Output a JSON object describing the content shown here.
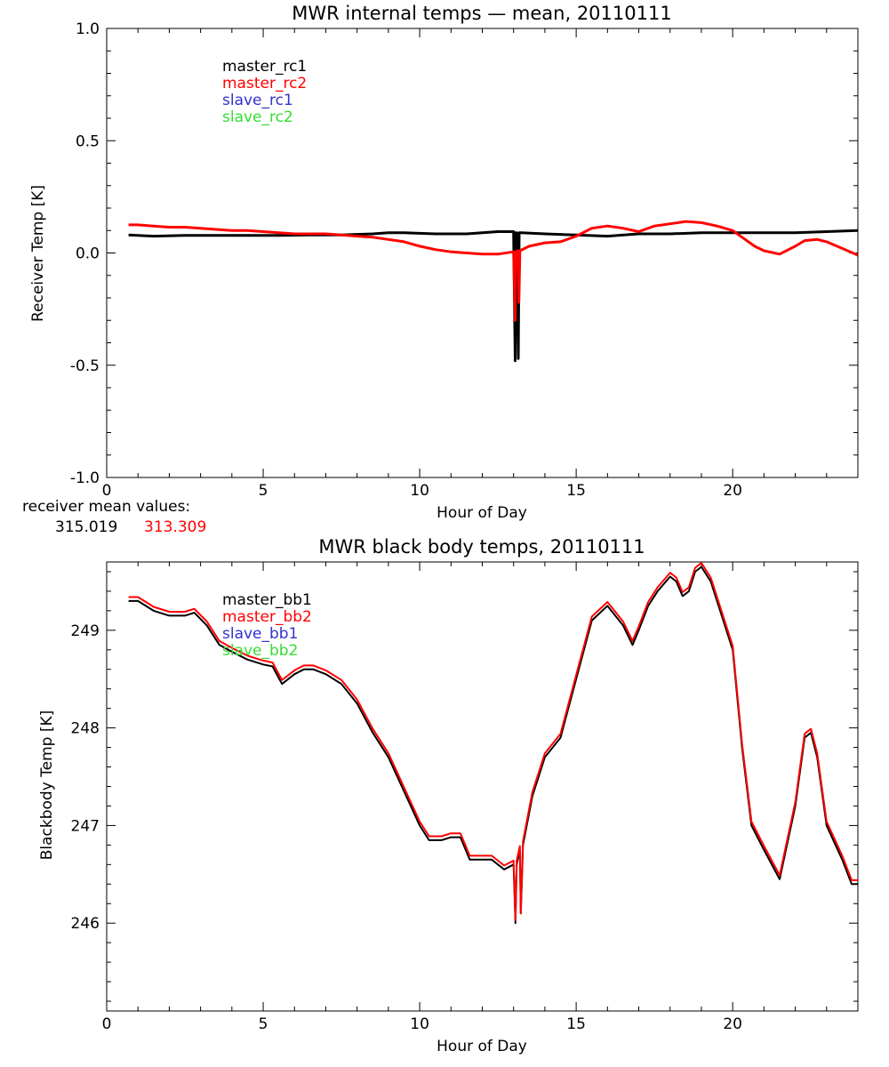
{
  "colors": {
    "master_rc1": "#000000",
    "master_rc2": "#ff0000",
    "slave_rc1": "#3333cc",
    "slave_rc2": "#33dd33"
  },
  "receiver_note": {
    "label": "receiver mean values:",
    "value_1": "315.019",
    "value_2": "313.309"
  },
  "chart_data": [
    {
      "type": "line",
      "title": "MWR internal temps — mean, 20110111",
      "xlabel": "Hour of Day",
      "ylabel": "Receiver Temp [K]",
      "xlim": [
        0,
        24
      ],
      "ylim": [
        -1.0,
        1.0
      ],
      "x_ticks": [
        "0",
        "5",
        "10",
        "15",
        "20"
      ],
      "y_ticks": [
        "-1.0",
        "-0.5",
        "0.0",
        "0.5",
        "1.0"
      ],
      "legend_position": "top-left",
      "legend": [
        "master_rc1",
        "master_rc2",
        "slave_rc1",
        "slave_rc2"
      ],
      "series": [
        {
          "name": "master_rc1",
          "x": [
            0.7,
            1.5,
            2.5,
            3.5,
            4.5,
            5.5,
            6.5,
            7.5,
            8.5,
            9.0,
            9.5,
            10.5,
            11.5,
            12.0,
            12.5,
            13.0,
            13.05,
            13.07,
            13.1,
            13.15,
            13.18,
            13.25,
            14.0,
            15.0,
            16.0,
            17.0,
            18.0,
            19.0,
            20.0,
            21.0,
            22.0,
            23.0,
            24.0
          ],
          "y": [
            0.08,
            0.075,
            0.078,
            0.078,
            0.078,
            0.078,
            0.08,
            0.08,
            0.085,
            0.09,
            0.09,
            0.085,
            0.085,
            0.09,
            0.095,
            0.095,
            -0.48,
            0.09,
            0.09,
            -0.47,
            0.09,
            0.09,
            0.085,
            0.08,
            0.075,
            0.085,
            0.085,
            0.09,
            0.09,
            0.09,
            0.09,
            0.095,
            0.1
          ]
        },
        {
          "name": "master_rc2",
          "x": [
            0.7,
            1.0,
            1.5,
            2.0,
            2.5,
            3.0,
            3.5,
            4.0,
            4.5,
            5.0,
            5.5,
            6.0,
            6.5,
            7.0,
            7.5,
            8.0,
            8.5,
            9.0,
            9.5,
            10.0,
            10.5,
            11.0,
            11.5,
            12.0,
            12.5,
            13.0,
            13.05,
            13.07,
            13.15,
            13.17,
            13.2,
            13.5,
            14.0,
            14.5,
            15.0,
            15.5,
            16.0,
            16.5,
            17.0,
            17.5,
            18.0,
            18.5,
            19.0,
            19.5,
            20.0,
            20.3,
            20.7,
            21.0,
            21.5,
            22.0,
            22.3,
            22.7,
            23.0,
            23.5,
            24.0
          ],
          "y": [
            0.125,
            0.125,
            0.12,
            0.115,
            0.115,
            0.11,
            0.105,
            0.1,
            0.1,
            0.095,
            0.09,
            0.085,
            0.085,
            0.085,
            0.08,
            0.075,
            0.07,
            0.06,
            0.05,
            0.03,
            0.015,
            0.005,
            0.0,
            -0.005,
            -0.005,
            0.005,
            -0.3,
            0.005,
            0.01,
            -0.22,
            0.01,
            0.03,
            0.045,
            0.05,
            0.075,
            0.11,
            0.12,
            0.11,
            0.095,
            0.12,
            0.13,
            0.14,
            0.135,
            0.12,
            0.1,
            0.07,
            0.03,
            0.01,
            -0.005,
            0.03,
            0.055,
            0.06,
            0.05,
            0.02,
            -0.01
          ]
        }
      ]
    },
    {
      "type": "line",
      "title": "MWR black body temps, 20110111",
      "xlabel": "Hour of Day",
      "ylabel": "Blackbody Temp [K]",
      "xlim": [
        0,
        24
      ],
      "ylim": [
        245.1,
        249.7
      ],
      "x_ticks": [
        "0",
        "5",
        "10",
        "15",
        "20"
      ],
      "y_ticks": [
        "246",
        "247",
        "248",
        "249"
      ],
      "legend_position": "top-left",
      "legend": [
        "master_bb1",
        "master_bb2",
        "slave_bb1",
        "slave_bb2"
      ],
      "series": [
        {
          "name": "master_bb1",
          "x": [
            0.7,
            1.0,
            1.5,
            2.0,
            2.5,
            2.8,
            3.2,
            3.6,
            4.0,
            4.5,
            5.0,
            5.3,
            5.6,
            6.0,
            6.3,
            6.6,
            7.0,
            7.5,
            8.0,
            8.5,
            9.0,
            9.5,
            10.0,
            10.3,
            10.7,
            11.0,
            11.3,
            11.6,
            12.0,
            12.3,
            12.7,
            13.0,
            13.06,
            13.1,
            13.2,
            13.23,
            13.3,
            13.6,
            14.0,
            14.5,
            15.0,
            15.5,
            16.0,
            16.5,
            16.8,
            17.0,
            17.3,
            17.6,
            18.0,
            18.2,
            18.4,
            18.6,
            18.8,
            19.0,
            19.3,
            19.6,
            20.0,
            20.3,
            20.6,
            21.0,
            21.5,
            22.0,
            22.3,
            22.5,
            22.7,
            23.0,
            23.5,
            23.8,
            24.0
          ],
          "y": [
            249.3,
            249.3,
            249.2,
            249.15,
            249.15,
            249.18,
            249.05,
            248.85,
            248.78,
            248.7,
            248.65,
            248.63,
            248.45,
            248.55,
            248.6,
            248.6,
            248.55,
            248.45,
            248.25,
            247.95,
            247.7,
            247.35,
            247.0,
            246.85,
            246.85,
            246.88,
            246.88,
            246.65,
            246.65,
            246.65,
            246.55,
            246.6,
            246.0,
            246.6,
            246.75,
            246.1,
            246.8,
            247.3,
            247.7,
            247.9,
            248.5,
            249.1,
            249.25,
            249.05,
            248.85,
            249.0,
            249.25,
            249.4,
            249.55,
            249.5,
            249.35,
            249.4,
            249.6,
            249.65,
            249.5,
            249.2,
            248.8,
            247.8,
            247.0,
            246.75,
            246.45,
            247.2,
            247.9,
            247.95,
            247.7,
            247.0,
            246.65,
            246.4,
            246.4
          ]
        },
        {
          "name": "master_bb2",
          "x": [
            0.7,
            1.0,
            1.5,
            2.0,
            2.5,
            2.8,
            3.2,
            3.6,
            4.0,
            4.5,
            5.0,
            5.3,
            5.6,
            6.0,
            6.3,
            6.6,
            7.0,
            7.5,
            8.0,
            8.5,
            9.0,
            9.5,
            10.0,
            10.3,
            10.7,
            11.0,
            11.3,
            11.6,
            12.0,
            12.3,
            12.7,
            13.0,
            13.06,
            13.1,
            13.2,
            13.23,
            13.3,
            13.6,
            14.0,
            14.5,
            15.0,
            15.5,
            16.0,
            16.5,
            16.8,
            17.0,
            17.3,
            17.6,
            18.0,
            18.2,
            18.4,
            18.6,
            18.8,
            19.0,
            19.3,
            19.6,
            20.0,
            20.3,
            20.6,
            21.0,
            21.5,
            22.0,
            22.3,
            22.5,
            22.7,
            23.0,
            23.5,
            23.8,
            24.0
          ],
          "y": [
            249.34,
            249.34,
            249.24,
            249.19,
            249.19,
            249.22,
            249.09,
            248.89,
            248.82,
            248.74,
            248.69,
            248.67,
            248.49,
            248.59,
            248.64,
            248.64,
            248.59,
            248.49,
            248.29,
            247.99,
            247.74,
            247.39,
            247.04,
            246.89,
            246.89,
            246.92,
            246.92,
            246.69,
            246.69,
            246.69,
            246.59,
            246.64,
            246.03,
            246.64,
            246.79,
            246.1,
            246.84,
            247.34,
            247.74,
            247.94,
            248.54,
            249.14,
            249.29,
            249.09,
            248.89,
            249.04,
            249.29,
            249.44,
            249.59,
            249.54,
            249.39,
            249.44,
            249.64,
            249.69,
            249.54,
            249.24,
            248.84,
            247.84,
            247.04,
            246.79,
            246.49,
            247.24,
            247.94,
            247.99,
            247.74,
            247.04,
            246.69,
            246.44,
            246.44
          ]
        }
      ]
    }
  ]
}
